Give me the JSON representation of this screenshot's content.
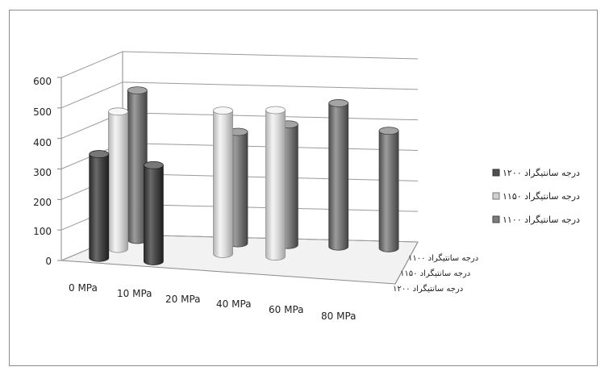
{
  "chart_data": {
    "type": "bar",
    "style": "3d-cylinder",
    "categories": [
      "0 MPa",
      "10 MPa",
      "20 MPa",
      "40 MPa",
      "60 MPa",
      "80 MPa"
    ],
    "depth_labels": [
      "۱۱۰۰ درجه سانتیگراد",
      "۱۱۵۰ درجه سانتیگراد",
      "۱۲۰۰ درجه سانتیگراد"
    ],
    "yticks": [
      "0",
      "100",
      "200",
      "300",
      "400",
      "500",
      "600"
    ],
    "ylim": [
      0,
      600
    ],
    "grid": true,
    "legend_position": "right",
    "series": [
      {
        "name": "۱۲۰۰ درجه سانتیگراد",
        "color": "#505050",
        "values": [
          340,
          315,
          null,
          null,
          null,
          null
        ]
      },
      {
        "name": "۱۱۵۰ درجه سانتیگراد",
        "color": "#cfcfcf",
        "values": [
          450,
          null,
          470,
          480,
          null,
          null
        ]
      },
      {
        "name": "۱۱۰۰ درجه سانتیگراد",
        "color": "#7c7c7c",
        "values": [
          490,
          null,
          365,
          395,
          470,
          385
        ]
      }
    ]
  }
}
